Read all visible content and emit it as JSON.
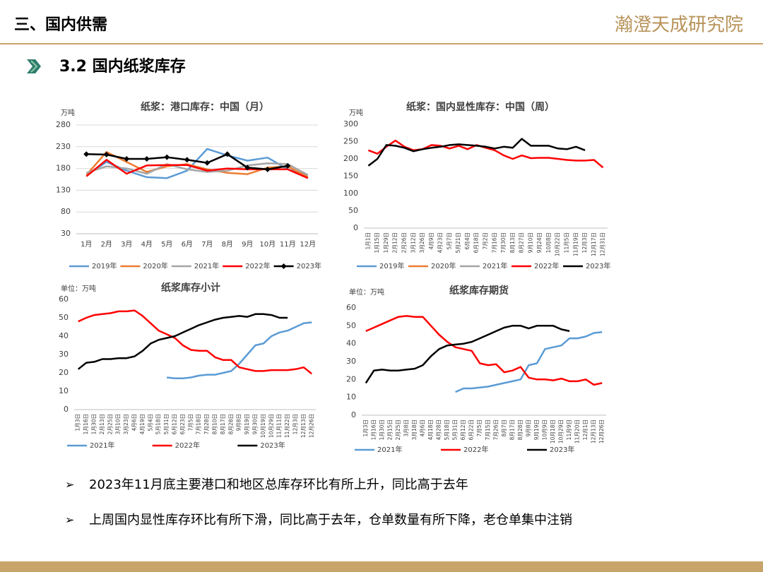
{
  "header": {
    "section": "三、国内供需",
    "logo": "瀚澄天成研究院",
    "subtitle": "3.2 国内纸浆库存"
  },
  "bullets": [
    "2023年11月底主要港口和地区总库存环比有所上升，同比高于去年",
    "上周国内显性库存环比有所下滑，同比高于去年，仓单数量有所下降，老仓单集中注销"
  ],
  "chart_data": [
    {
      "type": "line",
      "title": "纸浆：港口库存：中国（月）",
      "unit": "万吨",
      "grid": true,
      "legend": "bottom",
      "categories": [
        "1月",
        "2月",
        "3月",
        "4月",
        "5月",
        "6月",
        "7月",
        "8月",
        "9月",
        "10月",
        "11月",
        "12月"
      ],
      "ylim": [
        30,
        280
      ],
      "yticks": [
        30,
        80,
        130,
        180,
        230,
        280
      ],
      "series": [
        {
          "name": "2019年",
          "color": "#5b9bd5",
          "values": [
            165,
            195,
            175,
            160,
            158,
            175,
            225,
            210,
            198,
            205,
            178,
            165
          ]
        },
        {
          "name": "2020年",
          "color": "#ed7d31",
          "values": [
            165,
            218,
            195,
            172,
            185,
            190,
            178,
            170,
            167,
            182,
            185,
            160
          ]
        },
        {
          "name": "2021年",
          "color": "#a5a5a5",
          "values": [
            170,
            185,
            180,
            168,
            190,
            178,
            172,
            175,
            187,
            192,
            190,
            165
          ]
        },
        {
          "name": "2022年",
          "color": "#ff0000",
          "values": [
            162,
            200,
            168,
            187,
            188,
            188,
            175,
            180,
            178,
            178,
            178,
            158
          ]
        },
        {
          "name": "2023年",
          "color": "#000000",
          "marker": "diamond",
          "values": [
            213,
            212,
            202,
            202,
            206,
            200,
            193,
            213,
            182,
            178,
            186,
            null
          ]
        }
      ]
    },
    {
      "type": "line",
      "title": "纸浆：国内显性库存：中国（周）",
      "unit": "万吨",
      "grid": false,
      "legend": "bottom",
      "categories": [
        "1月1日",
        "1月15日",
        "1月29日",
        "2月12日",
        "2月26日",
        "3月12日",
        "3月26日",
        "4月9日",
        "4月23日",
        "5月7日",
        "5月21日",
        "6月4日",
        "6月18日",
        "7月2日",
        "7月16日",
        "7月30日",
        "8月13日",
        "8月27日",
        "9月10日",
        "9月24日",
        "10月8日",
        "10月22日",
        "11月5日",
        "11月19日",
        "12月3日",
        "12月17日",
        "12月31日"
      ],
      "ylim": [
        0,
        300
      ],
      "yticks": [
        0,
        50,
        100,
        150,
        200,
        250,
        300
      ],
      "series": [
        {
          "name": "2019年",
          "color": "#5b9bd5",
          "values": [
            null,
            null,
            null,
            null,
            null,
            null,
            null,
            null,
            null,
            null,
            null,
            null,
            null,
            null,
            null,
            null,
            null,
            null,
            null,
            null,
            null,
            null,
            null,
            null,
            null,
            null,
            null
          ]
        },
        {
          "name": "2020年",
          "color": "#ed7d31",
          "values": [
            null,
            null,
            null,
            null,
            null,
            null,
            null,
            null,
            null,
            null,
            null,
            null,
            null,
            null,
            null,
            null,
            null,
            null,
            null,
            null,
            null,
            null,
            null,
            null,
            null,
            null,
            null
          ]
        },
        {
          "name": "2021年",
          "color": "#a5a5a5",
          "values": [
            null,
            null,
            null,
            null,
            null,
            null,
            null,
            null,
            null,
            null,
            null,
            null,
            null,
            null,
            null,
            null,
            null,
            null,
            null,
            null,
            null,
            null,
            null,
            null,
            null,
            null,
            null
          ]
        },
        {
          "name": "2022年",
          "color": "#ff0000",
          "values": [
            225,
            215,
            235,
            253,
            235,
            225,
            228,
            240,
            238,
            230,
            238,
            228,
            240,
            232,
            225,
            210,
            200,
            210,
            202,
            203,
            203,
            200,
            197,
            195,
            195,
            197,
            175
          ]
        },
        {
          "name": "2023年",
          "color": "#000000",
          "values": [
            180,
            200,
            240,
            238,
            232,
            222,
            228,
            232,
            235,
            240,
            242,
            240,
            238,
            235,
            230,
            235,
            232,
            258,
            238,
            238,
            238,
            230,
            228,
            235,
            225,
            null,
            null
          ]
        }
      ]
    },
    {
      "type": "line",
      "title": "纸浆库存小计",
      "unit": "单位：万吨",
      "grid": false,
      "legend": "bottom",
      "categories": [
        "1月3日",
        "1月16日",
        "1月30日",
        "2月13日",
        "2月25日",
        "3月10日",
        "3月23日",
        "4月6日",
        "4月19日",
        "5月4日",
        "5月18日",
        "5月31日",
        "6月12日",
        "6月23日",
        "7月5日",
        "7月18日",
        "7月28日",
        "8月10日",
        "8月17日",
        "8月28日",
        "9月8日",
        "9月19日",
        "9月30日",
        "10月19日",
        "10月29日",
        "11月11日",
        "11月22日",
        "12月3日",
        "12月13日",
        "12月26日"
      ],
      "ylim": [
        0,
        60
      ],
      "yticks": [
        0,
        10,
        20,
        30,
        40,
        50,
        60
      ],
      "series": [
        {
          "name": "2021年",
          "color": "#5b9bd5",
          "values": [
            null,
            null,
            null,
            null,
            null,
            null,
            null,
            null,
            null,
            null,
            null,
            17.5,
            17,
            17,
            17.5,
            18.5,
            19,
            19,
            20,
            21,
            25,
            30,
            35,
            36,
            40,
            42,
            43,
            45,
            47,
            47.5
          ]
        },
        {
          "name": "2022年",
          "color": "#ff0000",
          "values": [
            48,
            50,
            51.5,
            52,
            52.5,
            53.5,
            53.5,
            54,
            51,
            47,
            43,
            41,
            39,
            35,
            32.5,
            32,
            32,
            28.5,
            27,
            27,
            23,
            22,
            21,
            21,
            21.5,
            21.5,
            21.5,
            22,
            23,
            19.5
          ]
        },
        {
          "name": "2023年",
          "color": "#000000",
          "values": [
            22,
            25.5,
            26,
            27.5,
            27.5,
            28,
            28,
            29,
            32,
            36,
            38,
            39,
            40,
            42,
            44,
            46,
            47.5,
            49,
            50,
            50.5,
            51,
            50.5,
            52,
            52,
            51.5,
            50,
            50,
            null,
            null,
            null
          ]
        }
      ]
    },
    {
      "type": "line",
      "title": "纸浆库存期货",
      "unit": "单位：万吨",
      "grid": false,
      "legend": "bottom",
      "categories": [
        "1月3日",
        "1月16日",
        "1月30日",
        "2月15日",
        "2月25日",
        "3月8日",
        "3月18日",
        "4月6日",
        "4月18日",
        "4月28日",
        "5月18日",
        "5月31日",
        "6月12日",
        "6月22日",
        "7月5日",
        "7月15日",
        "7月26日",
        "8月7日",
        "8月17日",
        "8月28日",
        "9月8日",
        "9月19日",
        "10月9日",
        "10月18日",
        "10月29日",
        "11月9日",
        "11月20日",
        "12月1日",
        "12月13日",
        "12月26日"
      ],
      "ylim": [
        0,
        60
      ],
      "yticks": [
        0,
        10,
        20,
        30,
        40,
        50,
        60
      ],
      "series": [
        {
          "name": "2021年",
          "color": "#5b9bd5",
          "values": [
            null,
            null,
            null,
            null,
            null,
            null,
            null,
            null,
            null,
            null,
            null,
            13,
            15,
            15,
            15.5,
            16,
            17,
            18,
            19,
            20,
            28,
            29,
            37,
            38,
            39,
            43,
            43,
            44,
            46,
            46.5
          ]
        },
        {
          "name": "2022年",
          "color": "#ff0000",
          "values": [
            47,
            49,
            51,
            53,
            55,
            55.5,
            55,
            55,
            50,
            45,
            41,
            38,
            37,
            36,
            29,
            28,
            28.5,
            24,
            25,
            27,
            21,
            20,
            20,
            19.5,
            20.5,
            19,
            19,
            20,
            17,
            18
          ]
        },
        {
          "name": "2023年",
          "color": "#000000",
          "values": [
            18,
            25,
            25.5,
            25,
            25,
            25.5,
            26,
            28,
            33,
            37,
            39,
            39.5,
            40,
            41,
            43,
            45,
            47,
            49,
            50,
            50,
            48.5,
            50,
            50,
            50,
            48,
            47,
            null,
            null,
            null,
            null
          ]
        }
      ]
    }
  ]
}
